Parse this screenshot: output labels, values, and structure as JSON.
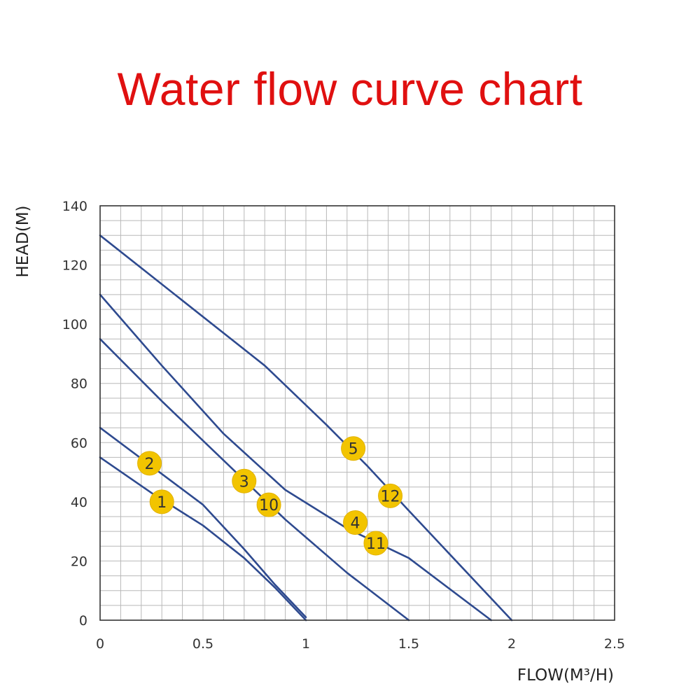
{
  "page": {
    "title": "Water flow curve chart"
  },
  "chart_data": {
    "type": "line",
    "xlabel": "FLOW(M³/H)",
    "ylabel": "HEAD(M)",
    "xlim": [
      0,
      2.5
    ],
    "ylim": [
      0,
      140
    ],
    "x_ticks": [
      "0",
      "0.5",
      "1",
      "1.5",
      "2",
      "2.5"
    ],
    "y_ticks": [
      "0",
      "20",
      "40",
      "60",
      "80",
      "100",
      "120",
      "140"
    ],
    "grid": true,
    "line_color": "#2e4a8f",
    "marker_color": "#f2c400",
    "series": [
      {
        "x": [
          0,
          0.25,
          0.5,
          0.7,
          0.85,
          1.0
        ],
        "y": [
          55,
          43,
          32,
          21,
          11,
          0
        ]
      },
      {
        "x": [
          0,
          0.25,
          0.5,
          0.7,
          0.85,
          1.0
        ],
        "y": [
          65,
          52,
          39,
          24,
          12,
          1
        ]
      },
      {
        "x": [
          0,
          0.3,
          0.6,
          0.9,
          1.2,
          1.5
        ],
        "y": [
          95,
          74,
          54,
          34,
          16,
          0
        ]
      },
      {
        "x": [
          0,
          0.3,
          0.6,
          0.9,
          1.2,
          1.5,
          1.9
        ],
        "y": [
          110,
          86,
          63,
          44,
          31,
          21,
          0
        ]
      },
      {
        "x": [
          0,
          0.4,
          0.8,
          1.1,
          1.3,
          1.5,
          2.0
        ],
        "y": [
          130,
          108,
          86,
          66,
          52,
          37,
          0
        ]
      }
    ],
    "markers": [
      {
        "label": "1",
        "x": 0.3,
        "y": 40
      },
      {
        "label": "2",
        "x": 0.24,
        "y": 53
      },
      {
        "label": "3",
        "x": 0.7,
        "y": 47
      },
      {
        "label": "10",
        "x": 0.82,
        "y": 39
      },
      {
        "label": "4",
        "x": 1.24,
        "y": 33
      },
      {
        "label": "11",
        "x": 1.34,
        "y": 26
      },
      {
        "label": "5",
        "x": 1.23,
        "y": 58
      },
      {
        "label": "12",
        "x": 1.41,
        "y": 42
      }
    ]
  }
}
